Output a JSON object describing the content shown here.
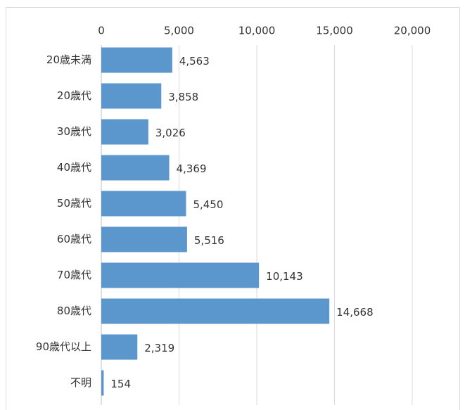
{
  "chart_data": {
    "type": "bar",
    "orientation": "horizontal",
    "categories": [
      "20歳未満",
      "20歳代",
      "30歳代",
      "40歳代",
      "50歳代",
      "60歳代",
      "70歳代",
      "80歳代",
      "90歳代以上",
      "不明"
    ],
    "values": [
      4563,
      3858,
      3026,
      4369,
      5450,
      5516,
      10143,
      14668,
      2319,
      154
    ],
    "value_labels": [
      "4,563",
      "3,858",
      "3,026",
      "4,369",
      "5,450",
      "5,516",
      "10,143",
      "14,668",
      "2,319",
      "154"
    ],
    "color": "#5b96cc",
    "xlim": [
      0,
      20000
    ],
    "xticks": [
      0,
      {
        "value": 5000,
        "label": "5,000"
      },
      {
        "value": 10000,
        "label": "10,000"
      },
      {
        "value": 15000,
        "label": "15,000"
      },
      {
        "value": 20000,
        "label": "20,000"
      }
    ],
    "grid": true
  }
}
